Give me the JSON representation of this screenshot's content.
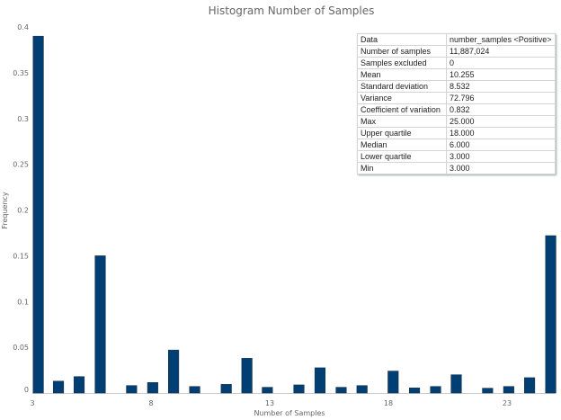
{
  "chart_data": {
    "type": "bar",
    "title": "Histogram Number of Samples",
    "xlabel": "Number of Samples",
    "ylabel": "Frequency",
    "xlim": [
      3,
      25.6
    ],
    "ylim": [
      0,
      0.4
    ],
    "xticks": [
      3,
      8,
      13,
      18,
      23
    ],
    "yticks": [
      0,
      0.05,
      0.1,
      0.15,
      0.2,
      0.25,
      0.3,
      0.35,
      0.4
    ],
    "ytick_labels": [
      "0",
      "0.05",
      "0.1",
      "0.15",
      "0.2",
      "0.25",
      "0.3",
      "0.35",
      "0.4"
    ],
    "bar_width": 0.44,
    "bars": [
      {
        "x": 3.03,
        "value": 0.39
      },
      {
        "x": 3.88,
        "value": 0.013
      },
      {
        "x": 4.75,
        "value": 0.018
      },
      {
        "x": 5.64,
        "value": 0.15
      },
      {
        "x": 6.96,
        "value": 0.0082
      },
      {
        "x": 7.85,
        "value": 0.0115
      },
      {
        "x": 8.73,
        "value": 0.047
      },
      {
        "x": 9.62,
        "value": 0.0072
      },
      {
        "x": 10.95,
        "value": 0.0095
      },
      {
        "x": 11.82,
        "value": 0.038
      },
      {
        "x": 12.68,
        "value": 0.0063
      },
      {
        "x": 14.01,
        "value": 0.0089
      },
      {
        "x": 14.9,
        "value": 0.0276
      },
      {
        "x": 15.79,
        "value": 0.0063
      },
      {
        "x": 16.67,
        "value": 0.0082
      },
      {
        "x": 17.98,
        "value": 0.024
      },
      {
        "x": 18.88,
        "value": 0.0056
      },
      {
        "x": 19.77,
        "value": 0.0072
      },
      {
        "x": 20.64,
        "value": 0.02
      },
      {
        "x": 21.96,
        "value": 0.0053
      },
      {
        "x": 22.85,
        "value": 0.0072
      },
      {
        "x": 23.73,
        "value": 0.0168
      },
      {
        "x": 24.62,
        "value": 0.172
      }
    ],
    "bar_color": "#003f74"
  },
  "stats": [
    [
      "Data",
      "number_samples <Positive>"
    ],
    [
      "Number of samples",
      "11,887,024"
    ],
    [
      "Samples excluded",
      "0"
    ],
    [
      "Mean",
      "10.255"
    ],
    [
      "Standard deviation",
      "8.532"
    ],
    [
      "Variance",
      "72.796"
    ],
    [
      "Coefficient of variation",
      "0.832"
    ],
    [
      "Max",
      "25.000"
    ],
    [
      "Upper quartile",
      "18.000"
    ],
    [
      "Median",
      "6.000"
    ],
    [
      "Lower quartile",
      "3.000"
    ],
    [
      "Min",
      "3.000"
    ]
  ]
}
